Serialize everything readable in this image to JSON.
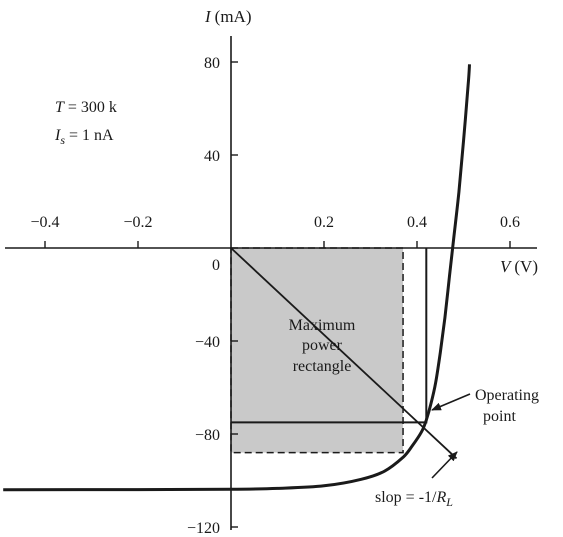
{
  "chart_data": {
    "type": "line",
    "title": "",
    "xlabel_var": "V",
    "xlabel_unit": "(V)",
    "ylabel_var": "I",
    "ylabel_unit": "(mA)",
    "xlim": [
      -0.45,
      0.65
    ],
    "ylim": [
      -130,
      90
    ],
    "x_ticks": [
      -0.4,
      -0.2,
      0.2,
      0.4,
      0.6
    ],
    "x_tick_labels": [
      "−0.4",
      "−0.2",
      "0.2",
      "0.4",
      "0.6"
    ],
    "y_ticks": [
      80,
      40,
      0,
      -40,
      -80,
      -120
    ],
    "y_tick_labels": [
      "80",
      "40",
      "0",
      "−40",
      "−80",
      "−120"
    ],
    "params": {
      "temperature": {
        "var": "T",
        "text": " = 300 k"
      },
      "saturation_current": {
        "var": "I",
        "sub": "s",
        "text": " = 1 nA"
      }
    },
    "series": [
      {
        "style": "solid-thick",
        "points": [
          [
            -0.49,
            -104
          ],
          [
            -0.2,
            -103.9
          ],
          [
            0.0,
            -103.8
          ],
          [
            0.1,
            -103.4
          ],
          [
            0.2,
            -102.3
          ],
          [
            0.28,
            -99.5
          ],
          [
            0.33,
            -96
          ],
          [
            0.37,
            -90
          ],
          [
            0.39,
            -85
          ],
          [
            0.41,
            -79
          ],
          [
            0.42,
            -74
          ],
          [
            0.43,
            -67
          ],
          [
            0.44,
            -58
          ],
          [
            0.45,
            -45
          ],
          [
            0.46,
            -30
          ],
          [
            0.47,
            -12
          ],
          [
            0.48,
            6
          ],
          [
            0.49,
            24
          ],
          [
            0.5,
            46
          ],
          [
            0.51,
            70
          ],
          [
            0.513,
            79
          ]
        ]
      }
    ],
    "load_line": {
      "from": [
        0.0,
        0.0
      ],
      "to": [
        0.485,
        -90.5
      ]
    },
    "operating_point": {
      "v": 0.42,
      "i": -75
    },
    "max_power_rectangle": {
      "v": 0.37,
      "i": -88
    },
    "annotations": {
      "rectangle_label": [
        "Maximum",
        "power",
        "rectangle"
      ],
      "operating_point_label": [
        "Operating",
        "point"
      ],
      "slope_label": {
        "text": "slop = -1/",
        "var": "R",
        "sub": "L"
      }
    },
    "colors": {
      "rect_fill": "#c9c9c9",
      "stroke": "#1a1a1a",
      "background": "#ffffff"
    },
    "grid": false,
    "legend": "none"
  }
}
